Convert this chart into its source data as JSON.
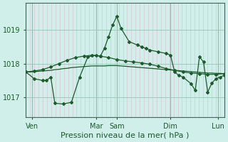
{
  "bg_color": "#d0eeea",
  "grid_color_h": "#99ccbb",
  "grid_color_v_minor": "#ddbbcc",
  "grid_color_v_major": "#99bbaa",
  "line_color": "#1a5c2a",
  "xlabel": "Pression niveau de la mer( hPa )",
  "xlabel_fontsize": 8,
  "tick_label_color": "#1a5c2a",
  "tick_fontsize": 7,
  "yticks": [
    1017,
    1018,
    1019
  ],
  "ylim": [
    1016.4,
    1019.8
  ],
  "xlim": [
    0,
    96
  ],
  "xtick_positions": [
    3,
    34,
    44,
    70,
    93
  ],
  "xtick_labels": [
    "Ven",
    "Mar",
    "Sam",
    "Dim",
    "Lun"
  ],
  "vline_major_x": [
    3,
    34,
    44,
    70,
    93
  ],
  "vline_minor_count": 48,
  "line1_x": [
    0,
    2,
    4,
    6,
    8,
    10,
    12,
    14,
    16,
    18,
    20,
    22,
    24,
    26,
    28,
    30,
    32,
    34,
    36,
    38,
    40,
    42,
    44,
    46,
    48,
    50,
    52,
    54,
    56,
    58,
    60,
    62,
    64,
    66,
    68,
    70,
    72,
    74,
    76,
    78,
    80,
    82,
    84,
    86,
    88,
    90,
    92,
    94,
    96
  ],
  "line1_y": [
    1017.75,
    1017.75,
    1017.76,
    1017.77,
    1017.78,
    1017.79,
    1017.8,
    1017.82,
    1017.83,
    1017.85,
    1017.86,
    1017.88,
    1017.89,
    1017.9,
    1017.91,
    1017.92,
    1017.93,
    1017.93,
    1017.93,
    1017.93,
    1017.94,
    1017.94,
    1017.94,
    1017.93,
    1017.92,
    1017.91,
    1017.9,
    1017.89,
    1017.88,
    1017.87,
    1017.86,
    1017.85,
    1017.84,
    1017.83,
    1017.82,
    1017.81,
    1017.8,
    1017.79,
    1017.78,
    1017.77,
    1017.76,
    1017.75,
    1017.74,
    1017.73,
    1017.72,
    1017.72,
    1017.71,
    1017.71,
    1017.7
  ],
  "line2_x": [
    0,
    4,
    8,
    12,
    16,
    20,
    24,
    28,
    32,
    36,
    40,
    44,
    48,
    52,
    56,
    60,
    64,
    68,
    72,
    76,
    80,
    84,
    88,
    92,
    96
  ],
  "line2_y": [
    1017.75,
    1017.78,
    1017.82,
    1017.9,
    1018.0,
    1018.1,
    1018.18,
    1018.22,
    1018.25,
    1018.22,
    1018.18,
    1018.12,
    1018.08,
    1018.05,
    1018.02,
    1017.98,
    1017.92,
    1017.85,
    1017.8,
    1017.75,
    1017.72,
    1017.7,
    1017.68,
    1017.68,
    1017.7
  ],
  "line3_x": [
    0,
    4,
    8,
    10,
    12,
    14,
    18,
    22,
    26,
    30,
    34,
    36,
    38,
    40,
    42,
    44,
    46,
    50,
    54,
    56,
    58,
    60,
    64,
    68,
    70,
    72,
    74,
    76,
    80,
    82,
    84,
    86,
    88,
    90,
    92,
    94,
    96
  ],
  "line3_y": [
    1017.75,
    1017.55,
    1017.5,
    1017.5,
    1017.6,
    1016.82,
    1016.8,
    1016.85,
    1017.6,
    1018.2,
    1018.25,
    1018.22,
    1018.45,
    1018.8,
    1019.15,
    1019.4,
    1019.05,
    1018.65,
    1018.55,
    1018.5,
    1018.45,
    1018.4,
    1018.35,
    1018.3,
    1018.25,
    1017.75,
    1017.65,
    1017.6,
    1017.4,
    1017.2,
    1018.2,
    1018.05,
    1017.15,
    1017.42,
    1017.55,
    1017.6,
    1017.65
  ]
}
